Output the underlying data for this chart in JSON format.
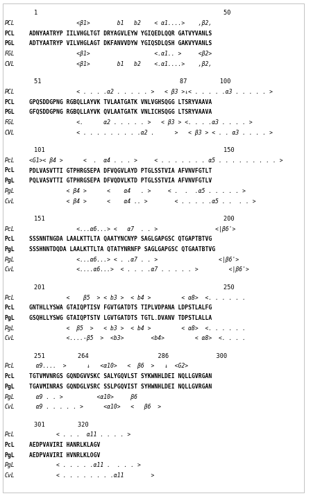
{
  "background_color": "#ffffff",
  "fig_width": 4.74,
  "fig_height": 7.15,
  "dpi": 100,
  "blocks": [
    {
      "numline": "        1                                                   50",
      "rows": [
        {
          "label": "PCL",
          "bold": false,
          "italic": true,
          "text": "              <β1>        b1   b2    < α1....>    ,β2,"
        },
        {
          "label": "PCL",
          "bold": true,
          "italic": false,
          "text": "ADNYAATRYP IILVHGLTGT DRYAGVLEYW YGIQEDLQQR GATVYVANLS"
        },
        {
          "label": "PGL",
          "bold": true,
          "italic": false,
          "text": "ADTYAATRYP VILVHGLAGT DKFANVVDYW YGIQSDLQSH GAKVYVANLS"
        },
        {
          "label": "FGL",
          "bold": false,
          "italic": true,
          "text": "              <β1>                   <.α1.. >     <β2>"
        },
        {
          "label": "CVL",
          "bold": false,
          "italic": true,
          "text": "              <β1>        b1   b2    <.α1....>    ,β2,"
        }
      ]
    },
    {
      "numline": "        51                                      87         100",
      "rows": [
        {
          "label": "PCL",
          "bold": false,
          "italic": true,
          "text": "              < . . . .α2 . . . . . >   < β3 >↓< . . . . .α3 . . . . . >"
        },
        {
          "label": "PCL",
          "bold": true,
          "italic": false,
          "text": "GPQSDDGPNG RGBQLLAYVK TVLAATGATK VNLVGHSQGG LTSRYVAAVA"
        },
        {
          "label": "PGL",
          "bold": true,
          "italic": false,
          "text": "GFQSDDGPNG RGBQLLAYVK QVLAATGATK VNLICHSQGG LTSRYVAAVA"
        },
        {
          "label": "FGL",
          "bold": false,
          "italic": true,
          "text": "              <.      α2 . . . . . >   < β3 > <. . . .α3 . . . . >"
        },
        {
          "label": "CVL",
          "bold": false,
          "italic": true,
          "text": "              < . . . . . . . . .α2 .      >   < β3 > < . . α3 . . . . >"
        }
      ]
    },
    {
      "numline": "        101                                                 150",
      "rows": [
        {
          "label": "PcL",
          "bold": false,
          "italic": true,
          "text": "<G1>< β4 >      <  .  α4 . . . >     < . . . . . . . α5 . . . . . . . . . >"
        },
        {
          "label": "PcL",
          "bold": true,
          "italic": false,
          "text": "PDLVASVTTI GTPHRGSEPA DFVQGVLAYD PTGLSSTVIA AFVNVFGTLT"
        },
        {
          "label": "PgL",
          "bold": true,
          "italic": false,
          "text": "PQLVASVTTI GTPHRGSEPA DFVQDVLKTD PTGLSSTVIA AFVNVFGTLV"
        },
        {
          "label": "PgL",
          "bold": false,
          "italic": true,
          "text": "           < β4 >      <    α4   . >     < .  .  .α5 . . . . . >"
        },
        {
          "label": "CvL",
          "bold": false,
          "italic": true,
          "text": "           < β4 >      <    α4 .. >        < . . . . .α5 . .  . . >"
        }
      ]
    },
    {
      "numline": "        151                                                 200",
      "rows": [
        {
          "label": "PcL",
          "bold": false,
          "italic": true,
          "text": "              <...α6...> <   α7  . . >                 <|β6'>"
        },
        {
          "label": "PcL",
          "bold": true,
          "italic": false,
          "text": "SSSNNTNGDA LAALKTTLTA QAATYNCNYP SAGLGAPGSC QTGAPTBTVG"
        },
        {
          "label": "PgL",
          "bold": true,
          "italic": false,
          "text": "SSSHNNTDQDA LAALKTTLTA QTATYNRNFP SAGLGAPGSC QTGAATBTVG"
        },
        {
          "label": "PgL",
          "bold": false,
          "italic": true,
          "text": "              <...α6...> < . .α7 . . >                  <|β6'>"
        },
        {
          "label": "CvL",
          "bold": false,
          "italic": true,
          "text": "              <....α6...>  < . . . .α7 . . . . . >         <|β6'>"
        }
      ]
    },
    {
      "numline": "        201                                                 250",
      "rows": [
        {
          "label": "PcL",
          "bold": false,
          "italic": true,
          "text": "           <    β5  > < b3 >  < b4 >         < α8>  <. . . . . ."
        },
        {
          "label": "PcL",
          "bold": true,
          "italic": false,
          "text": "GNTHLLYSWA GTAIQPTISV FGVTGATDTS TIPLVDPANA LDPSTLALFG"
        },
        {
          "label": "PgL",
          "bold": true,
          "italic": false,
          "text": "GSQHLLYSWG GTAIQPTSTV LGVTGATDTS TGTL.DVANV TDPSTLALLA"
        },
        {
          "label": "PgL",
          "bold": false,
          "italic": true,
          "text": "           <  β5  >   < b3 >  < b4 >         < α8>  <. . . . . ."
        },
        {
          "label": "CvL",
          "bold": false,
          "italic": true,
          "text": "           <....-β5  >  <b3>        <b4>         < α8>  <. . . ."
        }
      ]
    },
    {
      "numline": "        251         264                   286             300",
      "rows": [
        {
          "label": "PcL",
          "bold": false,
          "italic": true,
          "text": "  α9....  >      ↓   <α10>   <  β6  >   ↓  <G2>"
        },
        {
          "label": "PcL",
          "bold": true,
          "italic": false,
          "text": "TGTVMVNRGS GQNDGVVSKC SALYGQVLST SYKWNHLDEI NQLLGVRGAN"
        },
        {
          "label": "PgL",
          "bold": true,
          "italic": false,
          "text": "TGAVMINRAS GQNDGLVSRC SSLPGQVIST SYHWNHLDEI NQLLGVRGAN"
        },
        {
          "label": "PgL",
          "bold": false,
          "italic": true,
          "text": "  α9 . . >          <α10>     β6"
        },
        {
          "label": "CvL",
          "bold": false,
          "italic": true,
          "text": "  α9 . . . . . >      <α10>   <   β6  >"
        }
      ]
    },
    {
      "numline": "        301         320",
      "rows": [
        {
          "label": "PcL",
          "bold": false,
          "italic": true,
          "text": "        < . . .  α11 . . . . >"
        },
        {
          "label": "PcL",
          "bold": true,
          "italic": false,
          "text": "AEDPVAVIRI HANRLKLAGV"
        },
        {
          "label": "PgL",
          "bold": true,
          "italic": false,
          "text": "AEDPVAVIRI HVNRLKLOGV"
        },
        {
          "label": "PgL",
          "bold": false,
          "italic": true,
          "text": "        < . . . . .α11 .  . . . >"
        },
        {
          "label": "CvL",
          "bold": false,
          "italic": true,
          "text": "        < . . . . . . . .α11        >"
        }
      ]
    }
  ]
}
